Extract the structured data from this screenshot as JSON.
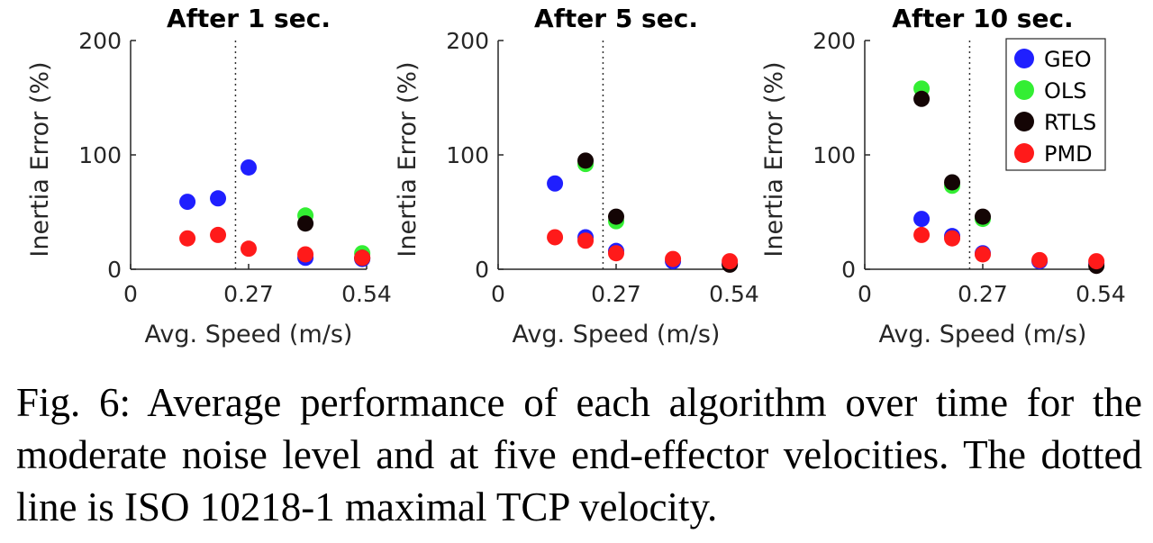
{
  "chart_data": [
    {
      "type": "scatter",
      "title": "After 1 sec.",
      "xlabel": "Avg. Speed (m/s)",
      "ylabel": "Inertia Error (%)",
      "xlim": [
        0,
        0.54
      ],
      "ylim": [
        0,
        200
      ],
      "xticks": [
        0,
        0.27,
        0.54
      ],
      "xtick_labels": [
        "0",
        "0.27",
        "0.54"
      ],
      "yticks": [
        0,
        100,
        200
      ],
      "ytick_labels": [
        "0",
        "100",
        "200"
      ],
      "reference_line_x": 0.24,
      "series": [
        {
          "name": "GEO",
          "color": "#1f1fff",
          "points": [
            [
              0.13,
              59
            ],
            [
              0.2,
              62
            ],
            [
              0.27,
              89
            ],
            [
              0.4,
              10
            ],
            [
              0.53,
              9
            ]
          ]
        },
        {
          "name": "OLS",
          "color": "#33ee33",
          "points": [
            [
              0.4,
              47
            ],
            [
              0.53,
              14
            ]
          ]
        },
        {
          "name": "RTLS",
          "color": "#140505",
          "points": [
            [
              0.4,
              40
            ],
            [
              0.53,
              10
            ]
          ]
        },
        {
          "name": "PMD",
          "color": "#ff1a1a",
          "points": [
            [
              0.13,
              27
            ],
            [
              0.2,
              30
            ],
            [
              0.27,
              18
            ],
            [
              0.4,
              13
            ],
            [
              0.53,
              10
            ]
          ]
        }
      ]
    },
    {
      "type": "scatter",
      "title": "After 5 sec.",
      "xlabel": "Avg. Speed (m/s)",
      "ylabel": "Inertia Error (%)",
      "xlim": [
        0,
        0.54
      ],
      "ylim": [
        0,
        200
      ],
      "xticks": [
        0,
        0.27,
        0.54
      ],
      "xtick_labels": [
        "0",
        "0.27",
        "0.54"
      ],
      "yticks": [
        0,
        100,
        200
      ],
      "ytick_labels": [
        "0",
        "100",
        "200"
      ],
      "reference_line_x": 0.24,
      "series": [
        {
          "name": "GEO",
          "color": "#1f1fff",
          "points": [
            [
              0.13,
              75
            ],
            [
              0.2,
              28
            ],
            [
              0.27,
              16
            ],
            [
              0.4,
              7
            ],
            [
              0.53,
              5
            ]
          ]
        },
        {
          "name": "OLS",
          "color": "#33ee33",
          "points": [
            [
              0.2,
              92
            ],
            [
              0.27,
              42
            ]
          ]
        },
        {
          "name": "RTLS",
          "color": "#140505",
          "points": [
            [
              0.2,
              95
            ],
            [
              0.27,
              46
            ],
            [
              0.53,
              4
            ]
          ]
        },
        {
          "name": "PMD",
          "color": "#ff1a1a",
          "points": [
            [
              0.13,
              28
            ],
            [
              0.2,
              25
            ],
            [
              0.27,
              14
            ],
            [
              0.4,
              9
            ],
            [
              0.53,
              7
            ]
          ]
        }
      ]
    },
    {
      "type": "scatter",
      "title": "After 10 sec.",
      "xlabel": "Avg. Speed (m/s)",
      "ylabel": "Inertia Error (%)",
      "xlim": [
        0,
        0.54
      ],
      "ylim": [
        0,
        200
      ],
      "xticks": [
        0,
        0.27,
        0.54
      ],
      "xtick_labels": [
        "0",
        "0.27",
        "0.54"
      ],
      "yticks": [
        0,
        100,
        200
      ],
      "ytick_labels": [
        "0",
        "100",
        "200"
      ],
      "reference_line_x": 0.24,
      "legend": {
        "position": "top-right",
        "entries": [
          "GEO",
          "OLS",
          "RTLS",
          "PMD"
        ]
      },
      "series": [
        {
          "name": "GEO",
          "color": "#1f1fff",
          "points": [
            [
              0.13,
              44
            ],
            [
              0.2,
              29
            ],
            [
              0.27,
              14
            ],
            [
              0.4,
              7
            ],
            [
              0.53,
              5
            ]
          ]
        },
        {
          "name": "OLS",
          "color": "#33ee33",
          "points": [
            [
              0.13,
              158
            ],
            [
              0.2,
              73
            ],
            [
              0.27,
              44
            ]
          ]
        },
        {
          "name": "RTLS",
          "color": "#140505",
          "points": [
            [
              0.13,
              149
            ],
            [
              0.2,
              76
            ],
            [
              0.27,
              46
            ],
            [
              0.53,
              3
            ]
          ]
        },
        {
          "name": "PMD",
          "color": "#ff1a1a",
          "points": [
            [
              0.13,
              30
            ],
            [
              0.2,
              27
            ],
            [
              0.27,
              13
            ],
            [
              0.4,
              8
            ],
            [
              0.53,
              7
            ]
          ]
        }
      ]
    }
  ],
  "caption": "Fig. 6: Average performance of each algorithm over time for the moderate noise level and at five end-effector velocities. The dotted line is ISO 10218-1 maximal TCP velocity."
}
